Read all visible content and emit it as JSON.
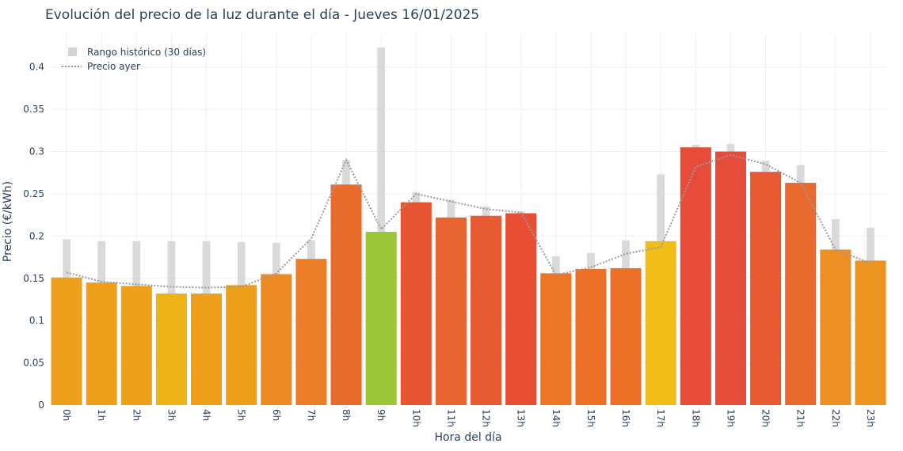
{
  "chart_data": {
    "type": "bar",
    "title": "Evolución del precio de la luz durante el día - Jueves 16/01/2025",
    "xlabel": "Hora del día",
    "ylabel": "Precio (€/kWh)",
    "ylim": [
      0,
      0.44
    ],
    "yticks": [
      0,
      0.05,
      0.1,
      0.15,
      0.2,
      0.25,
      0.3,
      0.35,
      0.4
    ],
    "ytick_labels": [
      "0",
      "0.05",
      "0.1",
      "0.15",
      "0.2",
      "0.25",
      "0.3",
      "0.35",
      "0.4"
    ],
    "categories": [
      "0h",
      "1h",
      "2h",
      "3h",
      "4h",
      "5h",
      "6h",
      "7h",
      "8h",
      "9h",
      "10h",
      "11h",
      "12h",
      "13h",
      "14h",
      "15h",
      "16h",
      "17h",
      "18h",
      "19h",
      "20h",
      "21h",
      "22h",
      "23h"
    ],
    "values": [
      0.151,
      0.145,
      0.141,
      0.132,
      0.132,
      0.142,
      0.155,
      0.173,
      0.261,
      0.205,
      0.24,
      0.222,
      0.224,
      0.227,
      0.156,
      0.161,
      0.162,
      0.194,
      0.305,
      0.3,
      0.276,
      0.263,
      0.184,
      0.171
    ],
    "bar_colors": [
      "#eea01c",
      "#eea01c",
      "#eea01c",
      "#eeb417",
      "#eea01c",
      "#eea01c",
      "#ec8a24",
      "#ec7d28",
      "#e86c2c",
      "#9dc53a",
      "#e75632",
      "#e86430",
      "#e75a32",
      "#e84e34",
      "#ec7528",
      "#ec7028",
      "#ec7028",
      "#f0be17",
      "#e74c3a",
      "#e64c3a",
      "#e75a32",
      "#e86a2e",
      "#ed8f24",
      "#ed9420"
    ],
    "series": [
      {
        "name": "Rango histórico (30 días)",
        "type": "range",
        "low": [
          0.068,
          0.061,
          0.054,
          0.05,
          0.034,
          0.055,
          0.073,
          0.102,
          0.107,
          0.118,
          0.058,
          0.039,
          0.03,
          0.028,
          0.028,
          0.033,
          0.04,
          0.105,
          0.11,
          0.107,
          0.106,
          0.115,
          0.102,
          0.085
        ],
        "high": [
          0.196,
          0.194,
          0.194,
          0.194,
          0.194,
          0.193,
          0.192,
          0.195,
          0.29,
          0.423,
          0.252,
          0.243,
          0.235,
          0.229,
          0.176,
          0.18,
          0.195,
          0.273,
          0.308,
          0.309,
          0.289,
          0.284,
          0.22,
          0.21
        ],
        "color": "#d3d3d3"
      },
      {
        "name": "Precio ayer",
        "type": "line",
        "style": "dotted",
        "values": [
          0.157,
          0.146,
          0.143,
          0.14,
          0.139,
          0.14,
          0.156,
          0.197,
          0.29,
          0.208,
          0.25,
          0.241,
          0.232,
          0.228,
          0.154,
          0.163,
          0.179,
          0.187,
          0.282,
          0.296,
          0.285,
          0.263,
          0.184,
          0.168
        ],
        "color": "#9a9a9a"
      }
    ],
    "grid": true,
    "legend_position": "top-left"
  }
}
